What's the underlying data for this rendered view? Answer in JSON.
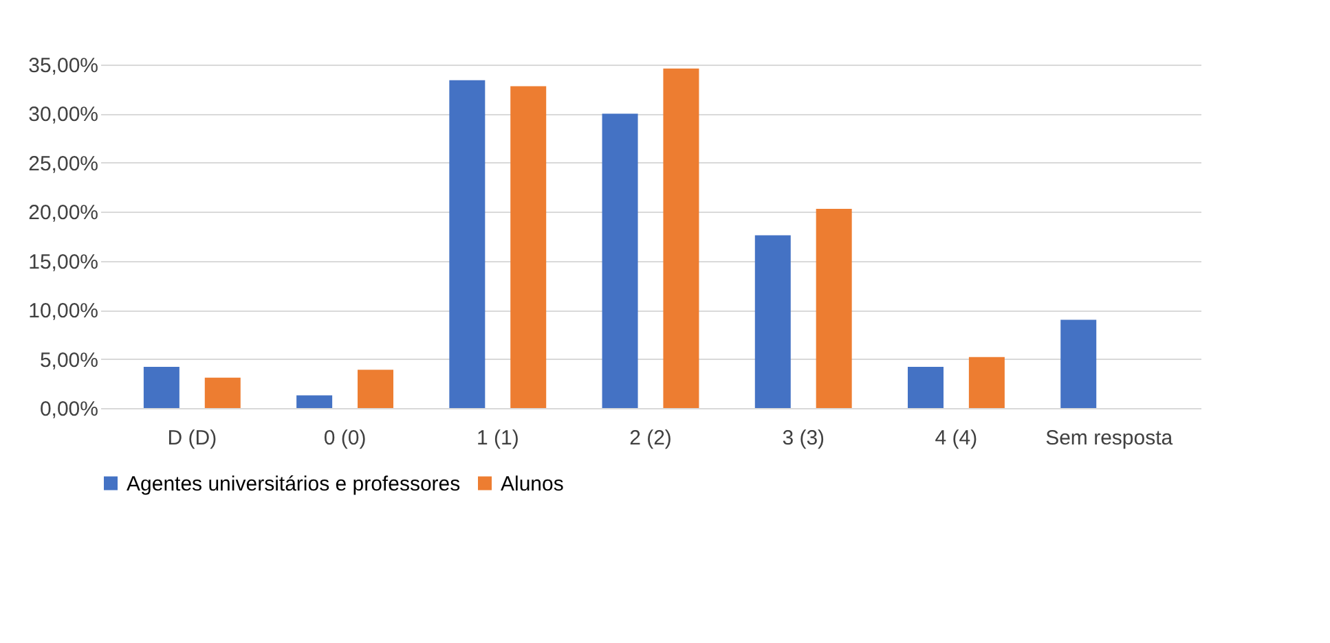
{
  "chart_data": {
    "type": "bar",
    "categories": [
      "D (D)",
      "0 (0)",
      "1 (1)",
      "2 (2)",
      "3 (3)",
      "4 (4)",
      "Sem resposta"
    ],
    "series": [
      {
        "name": "Agentes universitários e professores",
        "color": "#4472c4",
        "values": [
          4.2,
          1.3,
          33.4,
          30.0,
          17.6,
          4.2,
          9.0
        ]
      },
      {
        "name": "Alunos",
        "color": "#ed7d31",
        "values": [
          3.1,
          3.9,
          32.8,
          34.6,
          20.3,
          5.2,
          0.0
        ]
      }
    ],
    "ylim": [
      0,
      35
    ],
    "yticks": [
      {
        "value": 0,
        "label": "0,00%"
      },
      {
        "value": 5,
        "label": "5,00%"
      },
      {
        "value": 10,
        "label": "10,00%"
      },
      {
        "value": 15,
        "label": "15,00%"
      },
      {
        "value": 20,
        "label": "20,00%"
      },
      {
        "value": 25,
        "label": "25,00%"
      },
      {
        "value": 30,
        "label": "30,00%"
      },
      {
        "value": 35,
        "label": "35,00%"
      }
    ],
    "grid": "y",
    "legend": "bottom"
  }
}
